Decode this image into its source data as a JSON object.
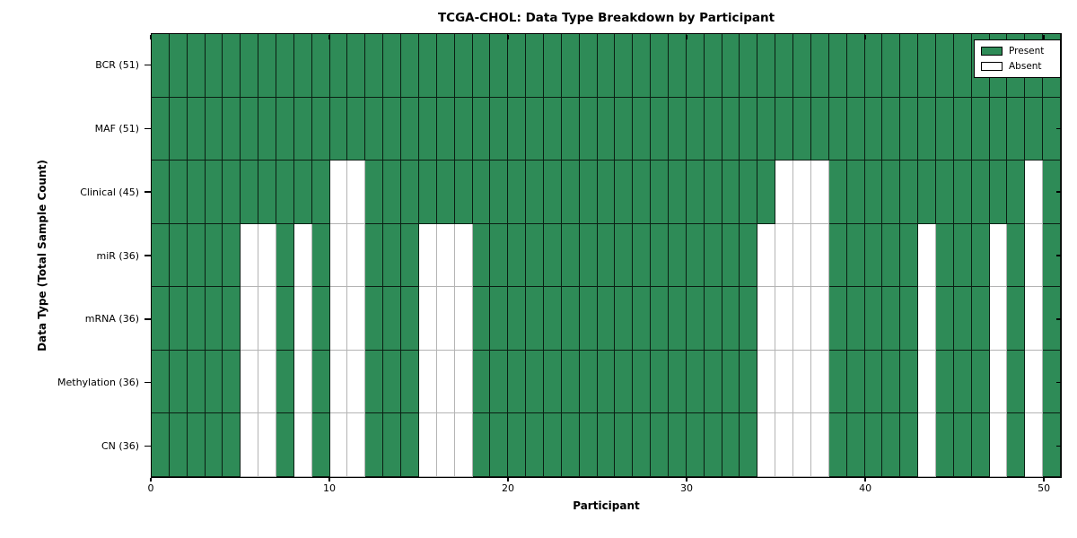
{
  "chart_data": {
    "type": "heatmap",
    "title": "TCGA-CHOL: Data Type Breakdown by Participant",
    "xlabel": "Participant",
    "ylabel": "Data Type (Total Sample Count)",
    "x_range": [
      0,
      51
    ],
    "n_participants": 51,
    "x_ticks": [
      0,
      10,
      20,
      30,
      40,
      50
    ],
    "x_tick_labels": [
      "0",
      "10",
      "20",
      "30",
      "40",
      "50"
    ],
    "grid": "cell borders only, no gridlines",
    "legend": {
      "position": "upper right",
      "entries": [
        {
          "label": "Present",
          "color": "#2e8b57"
        },
        {
          "label": "Absent",
          "color": "#ffffff"
        }
      ]
    },
    "colors": {
      "present": "#2e8b57",
      "absent": "#ffffff",
      "cell_edge_present": "rgba(0,0,0,0.78)",
      "cell_edge_absent": "#b4b4b4"
    },
    "rows": [
      {
        "label": "BCR (51)",
        "data_type": "BCR",
        "total_samples": 51,
        "absent_participants": []
      },
      {
        "label": "MAF (51)",
        "data_type": "MAF",
        "total_samples": 51,
        "absent_participants": []
      },
      {
        "label": "Clinical (45)",
        "data_type": "Clinical",
        "total_samples": 45,
        "absent_participants": [
          10,
          11,
          35,
          36,
          37,
          49
        ]
      },
      {
        "label": "miR (36)",
        "data_type": "miR",
        "total_samples": 36,
        "absent_participants": [
          5,
          6,
          8,
          10,
          11,
          15,
          16,
          17,
          34,
          35,
          36,
          37,
          43,
          47,
          49
        ]
      },
      {
        "label": "mRNA (36)",
        "data_type": "mRNA",
        "total_samples": 36,
        "absent_participants": [
          5,
          6,
          8,
          10,
          11,
          15,
          16,
          17,
          34,
          35,
          36,
          37,
          43,
          47,
          49
        ]
      },
      {
        "label": "Methylation (36)",
        "data_type": "Methylation",
        "total_samples": 36,
        "absent_participants": [
          5,
          6,
          8,
          10,
          11,
          15,
          16,
          17,
          34,
          35,
          36,
          37,
          43,
          47,
          49
        ]
      },
      {
        "label": "CN (36)",
        "data_type": "CN",
        "total_samples": 36,
        "absent_participants": [
          5,
          6,
          8,
          10,
          11,
          15,
          16,
          17,
          34,
          35,
          36,
          37,
          43,
          47,
          49
        ]
      }
    ]
  }
}
